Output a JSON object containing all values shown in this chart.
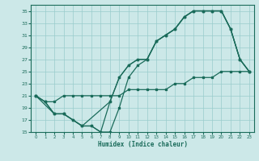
{
  "xlabel": "Humidex (Indice chaleur)",
  "bg_color": "#cce8e8",
  "grid_color": "#99cccc",
  "line_color": "#1a6b5a",
  "xlim": [
    -0.5,
    23.5
  ],
  "ylim": [
    15,
    36
  ],
  "xticks": [
    0,
    1,
    2,
    3,
    4,
    5,
    6,
    7,
    8,
    9,
    10,
    11,
    12,
    13,
    14,
    15,
    16,
    17,
    18,
    19,
    20,
    21,
    22,
    23
  ],
  "yticks": [
    15,
    17,
    19,
    21,
    23,
    25,
    27,
    29,
    31,
    33,
    35
  ],
  "line1_x": [
    0,
    1,
    2,
    3,
    4,
    5,
    6,
    7,
    8,
    9,
    10,
    11,
    12,
    13,
    14,
    15,
    16,
    17,
    18,
    19,
    20,
    21,
    22,
    23
  ],
  "line1_y": [
    21,
    20,
    18,
    18,
    17,
    16,
    16,
    15,
    15,
    19,
    24,
    26,
    27,
    30,
    31,
    32,
    34,
    35,
    35,
    35,
    35,
    32,
    27,
    25
  ],
  "line2_x": [
    0,
    1,
    2,
    3,
    4,
    5,
    6,
    7,
    8,
    9,
    10,
    11,
    12,
    13,
    14,
    15,
    16,
    17,
    18,
    19,
    20,
    21,
    22,
    23
  ],
  "line2_y": [
    21,
    20,
    18,
    18,
    17,
    16,
    16,
    15,
    20,
    24,
    26,
    27,
    27,
    30,
    31,
    32,
    34,
    35,
    35,
    35,
    35,
    32,
    27,
    25
  ],
  "line3_x": [
    0,
    2,
    3,
    5,
    8,
    9,
    10,
    11,
    12,
    13,
    14,
    15,
    16,
    17,
    18,
    19,
    20,
    21,
    22,
    23
  ],
  "line3_y": [
    21,
    18,
    18,
    16,
    20,
    24,
    26,
    27,
    27,
    30,
    31,
    32,
    34,
    35,
    35,
    35,
    35,
    32,
    27,
    25
  ],
  "line4_x": [
    0,
    1,
    2,
    3,
    4,
    5,
    6,
    7,
    8,
    9,
    10,
    11,
    12,
    13,
    14,
    15,
    16,
    17,
    18,
    19,
    20,
    21,
    22,
    23
  ],
  "line4_y": [
    21,
    20,
    20,
    21,
    21,
    21,
    21,
    21,
    21,
    21,
    22,
    22,
    22,
    22,
    22,
    23,
    23,
    24,
    24,
    24,
    25,
    25,
    25,
    25
  ]
}
